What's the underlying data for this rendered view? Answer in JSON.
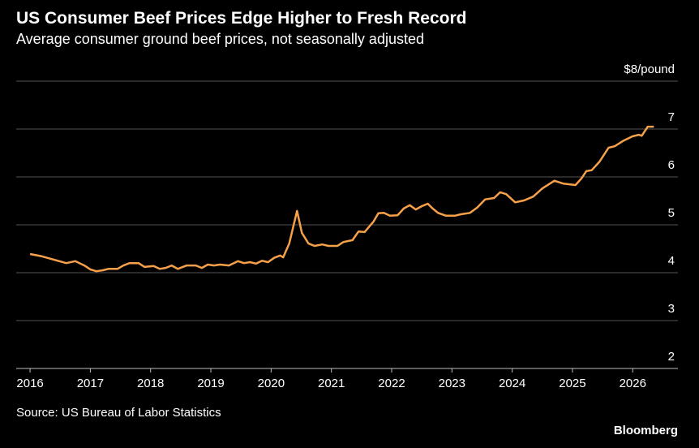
{
  "chart_data": {
    "type": "line",
    "title": "US Consumer Beef Prices Edge Higher to Fresh Record",
    "subtitle": "Average consumer ground beef prices, not seasonally adjusted",
    "source": "Source: US Bureau of Labor Statistics",
    "brand": "Bloomberg",
    "xlim": [
      2015.77,
      2026.75
    ],
    "xticks": [
      2016,
      2017,
      2018,
      2019,
      2020,
      2021,
      2022,
      2023,
      2024,
      2025,
      2026
    ],
    "ylim": [
      2,
      8
    ],
    "yticks": [
      2,
      3,
      4,
      5,
      6,
      7,
      {
        "value": 8,
        "label": "$8/pound"
      }
    ],
    "grid": true,
    "x": [
      2016.0,
      2016.2,
      2016.4,
      2016.6,
      2016.75,
      2016.9,
      2017.0,
      2017.1,
      2017.2,
      2017.3,
      2017.45,
      2017.55,
      2017.65,
      2017.8,
      2017.9,
      2018.05,
      2018.15,
      2018.25,
      2018.35,
      2018.45,
      2018.6,
      2018.75,
      2018.85,
      2018.95,
      2019.05,
      2019.15,
      2019.3,
      2019.45,
      2019.55,
      2019.65,
      2019.75,
      2019.85,
      2019.95,
      2020.05,
      2020.15,
      2020.2,
      2020.3,
      2020.43,
      2020.51,
      2020.62,
      2020.72,
      2020.85,
      2020.95,
      2021.1,
      2021.2,
      2021.35,
      2021.45,
      2021.55,
      2021.7,
      2021.78,
      2021.87,
      2021.97,
      2022.1,
      2022.2,
      2022.3,
      2022.4,
      2022.5,
      2022.6,
      2022.68,
      2022.77,
      2022.9,
      2023.05,
      2023.15,
      2023.3,
      2023.42,
      2023.55,
      2023.7,
      2023.8,
      2023.9,
      2024.05,
      2024.2,
      2024.35,
      2024.5,
      2024.7,
      2024.85,
      2025.05,
      2025.15,
      2025.23,
      2025.32,
      2025.45,
      2025.6,
      2025.7,
      2025.85,
      2026.0,
      2026.1,
      2026.15,
      2026.25,
      2026.35
    ],
    "series": [
      {
        "name": "Ground beef",
        "color": "#f7a04a",
        "values": [
          4.39,
          4.34,
          4.27,
          4.2,
          4.24,
          4.15,
          4.07,
          4.03,
          4.05,
          4.08,
          4.08,
          4.15,
          4.2,
          4.2,
          4.12,
          4.14,
          4.08,
          4.1,
          4.15,
          4.08,
          4.15,
          4.15,
          4.1,
          4.17,
          4.15,
          4.17,
          4.15,
          4.24,
          4.2,
          4.22,
          4.19,
          4.25,
          4.22,
          4.31,
          4.36,
          4.32,
          4.61,
          5.29,
          4.83,
          4.61,
          4.56,
          4.59,
          4.56,
          4.56,
          4.64,
          4.68,
          4.86,
          4.85,
          5.07,
          5.24,
          5.25,
          5.19,
          5.2,
          5.34,
          5.41,
          5.32,
          5.39,
          5.44,
          5.34,
          5.25,
          5.19,
          5.19,
          5.22,
          5.25,
          5.36,
          5.53,
          5.56,
          5.68,
          5.64,
          5.47,
          5.51,
          5.59,
          5.76,
          5.92,
          5.86,
          5.83,
          5.97,
          6.12,
          6.14,
          6.32,
          6.61,
          6.64,
          6.76,
          6.85,
          6.88,
          6.86,
          7.05,
          7.05
        ]
      }
    ]
  }
}
